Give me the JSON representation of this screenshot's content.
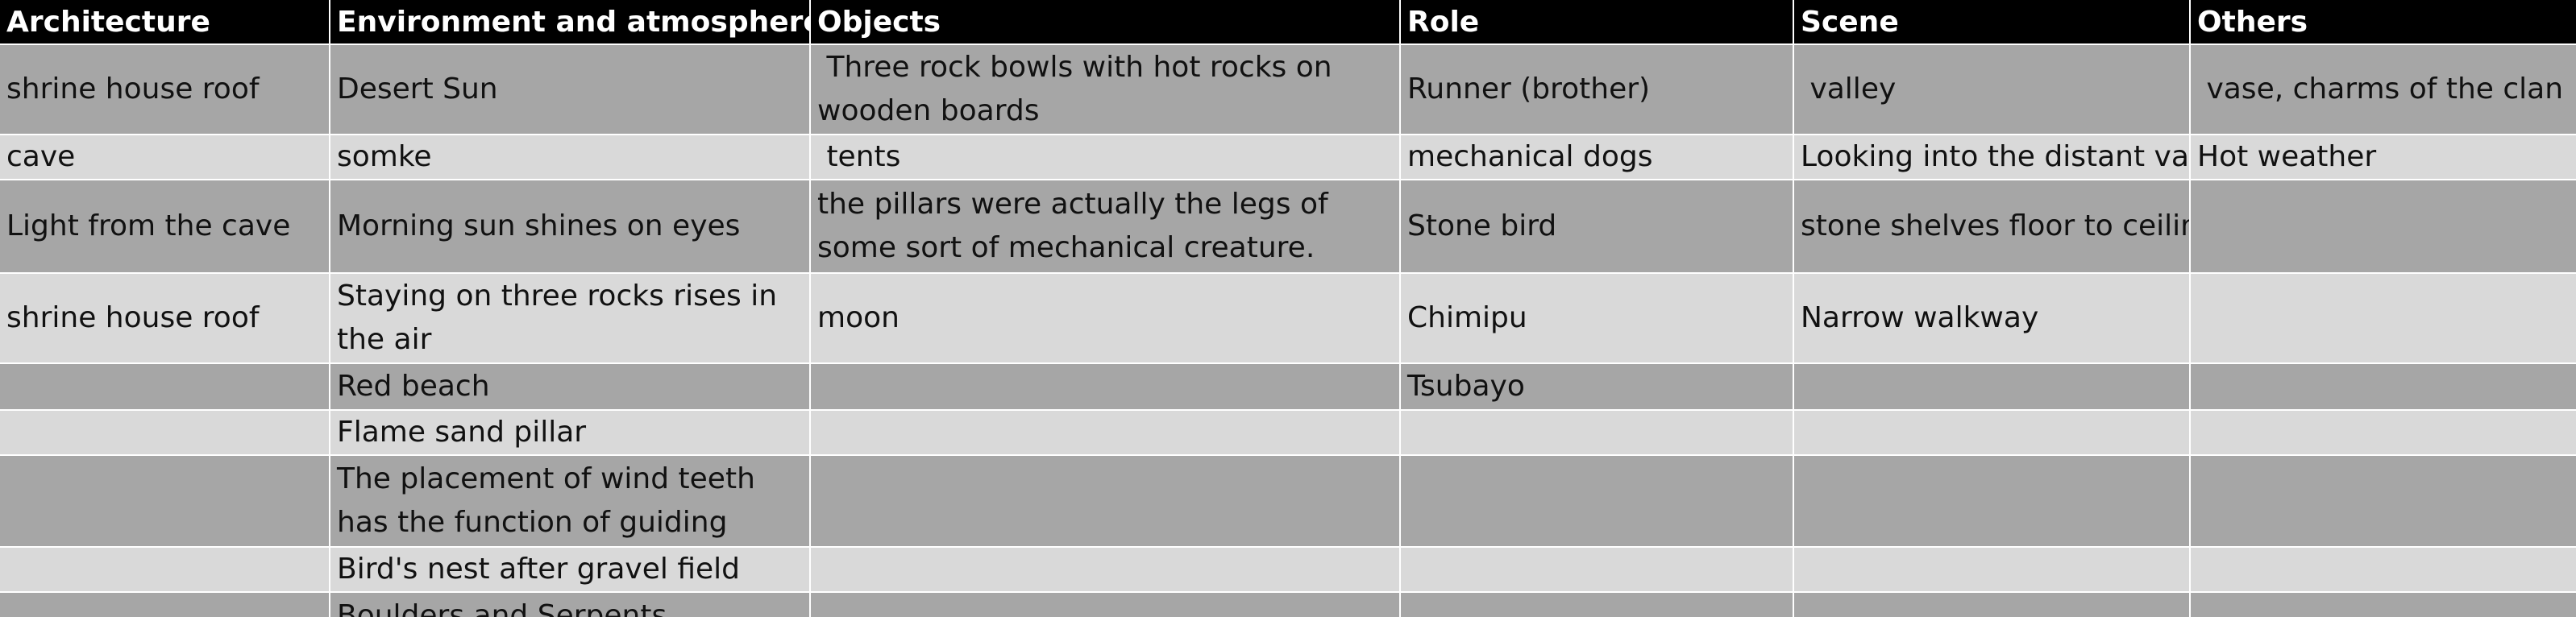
{
  "sheet": {
    "headers": [
      "Architecture",
      "Environment and atmosphere",
      "Objects",
      "Role",
      "Scene",
      "Others"
    ],
    "rows": [
      [
        "shrine house roof",
        "Desert Sun",
        " Three rock bowls with hot rocks on wooden boards",
        "Runner (brother)",
        " valley",
        " vase, charms of the clan"
      ],
      [
        "cave",
        "somke",
        " tents",
        "mechanical dogs",
        "Looking into the distant valley",
        "Hot weather"
      ],
      [
        "Light from the cave",
        "Morning sun shines on eyes",
        "the pillars were actually the legs of some sort of mechanical creature.",
        "Stone bird",
        "stone shelves floor to ceiling",
        ""
      ],
      [
        "shrine house roof",
        "Staying on three rocks rises in the air",
        "moon",
        "Chimipu",
        "Narrow walkway",
        ""
      ],
      [
        "",
        "Red beach",
        "",
        "Tsubayo",
        "",
        ""
      ],
      [
        "",
        "Flame sand pillar",
        "",
        "",
        "",
        ""
      ],
      [
        "",
        "The placement of wind teeth has the function of guiding",
        "",
        "",
        "",
        ""
      ],
      [
        "",
        "Bird's nest after gravel field",
        "",
        "",
        "",
        ""
      ],
      [
        "",
        "Boulders and Serpents",
        "",
        "",
        "",
        ""
      ]
    ]
  }
}
